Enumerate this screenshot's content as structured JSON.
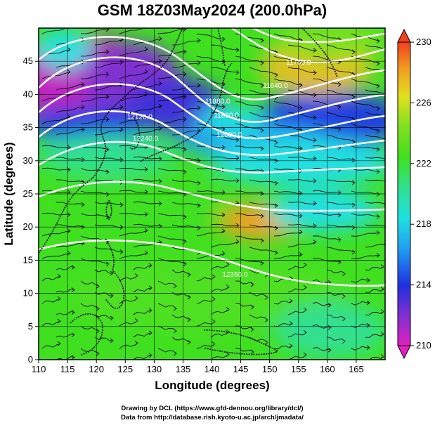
{
  "title": "GSM 18Z03May2024 (200.0hPa)",
  "x_axis": {
    "label": "Longitude (degrees)",
    "ticks": [
      "110",
      "115",
      "120",
      "125",
      "130",
      "135",
      "140",
      "145",
      "150",
      "155",
      "160",
      "165"
    ],
    "range": [
      110,
      170
    ]
  },
  "y_axis": {
    "label": "Latitude (degrees)",
    "ticks": [
      "0",
      "5",
      "10",
      "15",
      "20",
      "25",
      "30",
      "35",
      "40",
      "45"
    ],
    "range": [
      0,
      50
    ]
  },
  "colorbar": {
    "ticks": [
      "230",
      "226",
      "222",
      "218",
      "214",
      "210"
    ],
    "range": [
      210,
      230
    ],
    "colors": [
      "#e020c0",
      "#8030d0",
      "#2030e0",
      "#20a0f0",
      "#20e0e0",
      "#30e090",
      "#40e020",
      "#80e020",
      "#e0e020",
      "#f0a020",
      "#f04020"
    ]
  },
  "contour_labels": [
    {
      "text": "11880.0",
      "lon": 141.0,
      "lat": 38.6
    },
    {
      "text": "11880.0",
      "lon": 142.5,
      "lat": 36.5
    },
    {
      "text": "12000.0",
      "lon": 143.0,
      "lat": 33.6
    },
    {
      "text": "12120.0",
      "lon": 127.5,
      "lat": 36.3
    },
    {
      "text": "12240.0",
      "lon": 128.5,
      "lat": 33.0
    },
    {
      "text": "12360.0",
      "lon": 144.0,
      "lat": 12.5
    },
    {
      "text": "11760.0",
      "lon": 155.0,
      "lat": 44.5
    },
    {
      "text": "11640.0",
      "lon": 151.0,
      "lat": 41.0
    }
  ],
  "credits": {
    "line1": "Drawing by DCL (https://www.gfd-dennou.org/library/dcl/)",
    "line2": "Data from http://database.rish.kyoto-u.ac.jp/arch/jmadata/"
  }
}
